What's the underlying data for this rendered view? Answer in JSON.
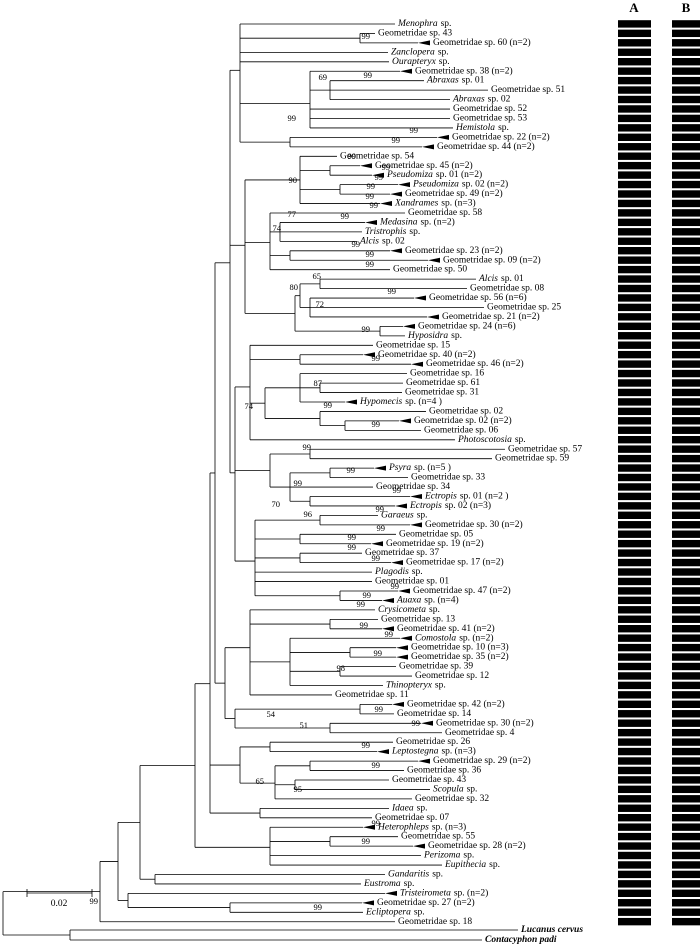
{
  "columns": [
    "A",
    "B"
  ],
  "scale_bar": "0.02",
  "tips": [
    {
      "italic": "Menophra",
      "text": "sp."
    },
    {
      "text": "Geometridae sp. 43"
    },
    {
      "text": "Geometridae sp. 60 (n=2)"
    },
    {
      "italic": "Zanclopera",
      "text": "sp."
    },
    {
      "italic": "Ourapteryx",
      "text": "sp."
    },
    {
      "text": "Geometridae sp. 38 (n=2)"
    },
    {
      "italic": "Abraxas",
      "text": "sp. 01"
    },
    {
      "text": "Geometridae sp. 51"
    },
    {
      "italic": "Abraxas",
      "text": "sp. 02"
    },
    {
      "text": "Geometridae sp. 52"
    },
    {
      "text": "Geometridae sp. 53"
    },
    {
      "italic": "Hemistola",
      "text": "sp."
    },
    {
      "text": "Geometridae sp. 22 (n=2)"
    },
    {
      "text": "Geometridae sp. 44 (n=2)"
    },
    {
      "text": "Geometridae sp. 54"
    },
    {
      "text": "Geometridae sp. 45 (n=2)"
    },
    {
      "italic": "Pseudomiza",
      "text": "sp. 01 (n=2)"
    },
    {
      "italic": "Pseudomiza",
      "text": "sp. 02 (n=2)"
    },
    {
      "text": "Geometridae sp. 49 (n=2)"
    },
    {
      "italic": "Xandrames",
      "text": "sp. (n=3)"
    },
    {
      "text": "Geometridae sp. 58"
    },
    {
      "italic": "Medasina",
      "text": "sp. (n=2)"
    },
    {
      "italic": "Tristrophis",
      "text": "sp."
    },
    {
      "italic": "Alcis",
      "text": "sp. 02"
    },
    {
      "text": "Geometridae sp. 23 (n=2)"
    },
    {
      "text": "Geometridae sp. 09 (n=2)"
    },
    {
      "text": "Geometridae sp. 50"
    },
    {
      "italic": "Alcis",
      "text": "sp. 01"
    },
    {
      "text": "Geometridae sp. 08"
    },
    {
      "text": "Geometridae sp. 56 (n=6)"
    },
    {
      "text": "Geometridae sp. 25"
    },
    {
      "text": "Geometridae sp. 21 (n=2)"
    },
    {
      "text": "Geometridae sp. 24 (n=6)"
    },
    {
      "italic": "Hyposidra",
      "text": "sp."
    },
    {
      "text": "Geometridae sp. 15"
    },
    {
      "text": "Geometridae sp. 40 (n=2)"
    },
    {
      "text": "Geometridae sp. 46 (n=2)"
    },
    {
      "text": "Geometridae sp. 16"
    },
    {
      "text": "Geometridae sp. 61"
    },
    {
      "text": "Geometridae sp. 31"
    },
    {
      "italic": "Hypomecis",
      "text": "sp. (n=4 )"
    },
    {
      "text": "Geometridae sp. 02"
    },
    {
      "text": "Geometridae sp. 02 (n=2)"
    },
    {
      "text": "Geometridae sp. 06"
    },
    {
      "italic": "Photoscotosia",
      "text": "sp."
    },
    {
      "text": "Geometridae sp. 57"
    },
    {
      "text": "Geometridae sp. 59"
    },
    {
      "italic": "Psyra",
      "text": "sp. (n=5 )"
    },
    {
      "text": "Geometridae sp. 33"
    },
    {
      "text": "Geometridae sp. 34"
    },
    {
      "italic": "Ectropis",
      "text": "sp. 01 (n=2 )"
    },
    {
      "italic": "Ectropis",
      "text": "sp. 02 (n=3)"
    },
    {
      "italic": "Garaeus",
      "text": "sp."
    },
    {
      "text": "Geometridae sp. 30 (n=2)"
    },
    {
      "text": "Geometridae sp. 05"
    },
    {
      "text": "Geometridae sp. 19 (n=2)"
    },
    {
      "text": "Geometridae sp. 37"
    },
    {
      "text": "Geometridae sp. 17 (n=2)"
    },
    {
      "italic": "Plagodis",
      "text": "sp."
    },
    {
      "text": "Geometridae sp. 01"
    },
    {
      "text": "Geometridae sp. 47 (n=2)"
    },
    {
      "italic": "Auaxa",
      "text": "sp. (n=4)"
    },
    {
      "italic": "Crysicometa",
      "text": "sp."
    },
    {
      "text": "Geometridae sp. 13"
    },
    {
      "text": "Geometridae sp. 41 (n=2)"
    },
    {
      "italic": "Comostola",
      "text": "sp. (n=2)"
    },
    {
      "text": "Geometridae sp. 10 (n=3)"
    },
    {
      "text": "Geometridae sp. 35 (n=2)"
    },
    {
      "text": "Geometridae sp. 39"
    },
    {
      "text": "Geometridae sp. 12"
    },
    {
      "italic": "Thinopteryx",
      "text": "sp."
    },
    {
      "text": "Geometridae sp. 11"
    },
    {
      "text": "Geometridae sp. 42 (n=2)"
    },
    {
      "text": "Geometridae sp. 14"
    },
    {
      "text": "Geometridae sp. 30 (n=2)"
    },
    {
      "text": "Geometridae sp. 4"
    },
    {
      "text": "Geometridae sp. 26"
    },
    {
      "italic": "Leptostegna",
      "text": "sp. (n=3)"
    },
    {
      "text": "Geometridae sp. 29 (n=2)"
    },
    {
      "text": "Geometridae sp. 36"
    },
    {
      "text": "Geometridae sp. 43"
    },
    {
      "italic": "Scopula",
      "text": "sp."
    },
    {
      "text": "Geometridae sp. 32"
    },
    {
      "italic": "Idaea",
      "text": "sp."
    },
    {
      "text": "Geometridae sp. 07"
    },
    {
      "italic": "Heterophleps",
      "text": "sp. (n=3)"
    },
    {
      "text": "Geometridae sp. 55"
    },
    {
      "text": "Geometridae sp. 28 (n=2)"
    },
    {
      "italic": "Perizoma",
      "text": "sp."
    },
    {
      "italic": "Eupithecia",
      "text": "sp."
    },
    {
      "italic": "Gandaritis",
      "text": "sp."
    },
    {
      "italic": "Eustroma",
      "text": "sp."
    },
    {
      "italic": "Tristeirometa",
      "text": "sp. (n=2)"
    },
    {
      "text": "Geometridae sp. 27 (n=2)"
    },
    {
      "italic": "Ecliptopera",
      "text": "sp."
    },
    {
      "text": "Geometridae sp. 18"
    },
    {
      "italic": "Lucanus cervus"
    },
    {
      "italic": "Contacyphon padi"
    }
  ],
  "support": [
    "99",
    "69",
    "99",
    "99",
    "99",
    "99",
    "99",
    "99",
    "99",
    "90",
    "99",
    "99",
    "99",
    "77",
    "99",
    "74",
    "99",
    "99",
    "99",
    "65",
    "80",
    "99",
    "72",
    "99",
    "99",
    "87",
    "99",
    "74",
    "99",
    "99",
    "99",
    "99",
    "99",
    "70",
    "99",
    "96",
    "99",
    "99",
    "99",
    "99",
    "99",
    "99",
    "99",
    "99",
    "99",
    "99",
    "98",
    "54",
    "99",
    "51",
    "99",
    "99",
    "99",
    "65",
    "95",
    "99",
    "99",
    "99",
    "99"
  ]
}
